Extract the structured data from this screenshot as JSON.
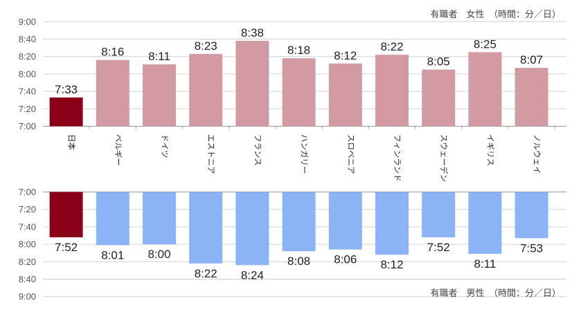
{
  "chart_data": [
    {
      "type": "bar",
      "caption": "有職者　女性　（時間：分／日）",
      "categories": [
        "日本",
        "ベルギー",
        "ドイツ",
        "エストニア",
        "フランス",
        "ハンガリー",
        "スロベニア",
        "フィンランド",
        "スウェーデン",
        "イギリス",
        "ノルウェイ"
      ],
      "values": [
        "7:33",
        "8:16",
        "8:11",
        "8:23",
        "8:38",
        "8:18",
        "8:12",
        "8:22",
        "8:05",
        "8:25",
        "8:07"
      ],
      "y_ticks": [
        "9:00",
        "8:40",
        "8:20",
        "8:00",
        "7:40",
        "7:20",
        "7:00"
      ],
      "ylim": [
        "7:00",
        "9:00"
      ],
      "colors": {
        "highlight": "#8b0019",
        "bars": "#d29aa2"
      }
    },
    {
      "type": "bar",
      "caption": "有職者　男性　（時間：分／日）",
      "categories": [
        "日本",
        "ベルギー",
        "ドイツ",
        "エストニア",
        "フランス",
        "ハンガリー",
        "スロベニア",
        "フィンランド",
        "スウェーデン",
        "イギリス",
        "ノルウェイ"
      ],
      "values": [
        "7:52",
        "8:01",
        "8:00",
        "8:22",
        "8:24",
        "8:08",
        "8:06",
        "8:12",
        "7:52",
        "8:11",
        "7:53"
      ],
      "y_ticks": [
        "7:00",
        "7:20",
        "7:40",
        "8:00",
        "8:20",
        "8:40",
        "9:00"
      ],
      "ylim": [
        "7:00",
        "9:00"
      ],
      "inverted": true,
      "colors": {
        "highlight": "#8b0019",
        "bars": "#8bb3f5"
      }
    }
  ]
}
